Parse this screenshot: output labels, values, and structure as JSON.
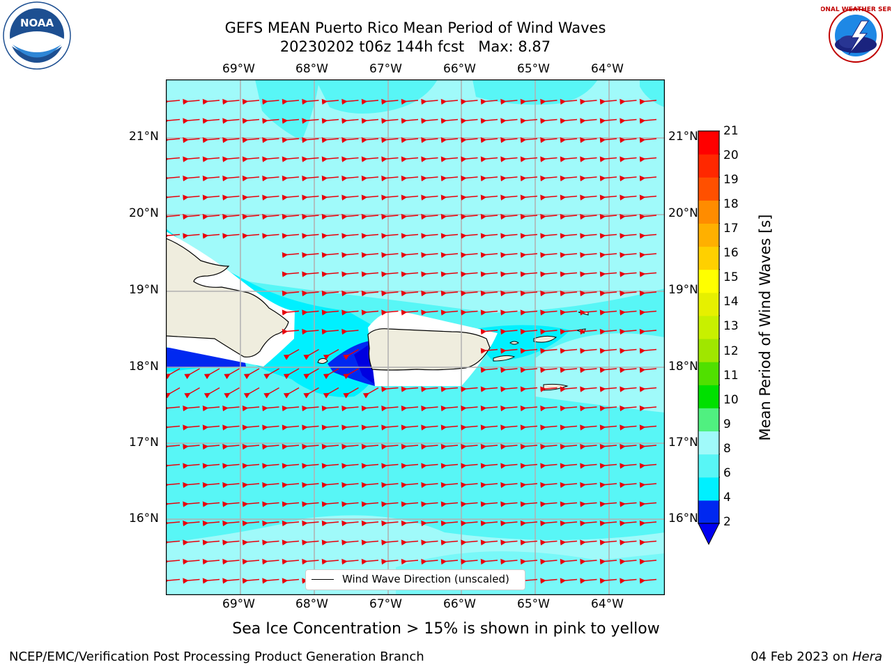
{
  "header": {
    "title_line1": "GEFS MEAN Puerto Rico Mean Period of Wind Waves",
    "title_line2": "20230202 t06z 144h fcst   Max: 8.87"
  },
  "logos": {
    "left": {
      "icon": "noaa-logo",
      "text": "NOAA"
    },
    "right": {
      "icon": "nws-logo",
      "ring_text": "NATIONAL WEATHER SERVICE"
    }
  },
  "map": {
    "lon_labels": [
      "69°W",
      "68°W",
      "67°W",
      "66°W",
      "65°W",
      "64°W"
    ],
    "lat_labels": [
      "21°N",
      "20°N",
      "19°N",
      "18°N",
      "17°N",
      "16°N"
    ],
    "legend_label": "Wind Wave Direction (unscaled)",
    "arrow_color": "#e8000b",
    "land_color": "#efedde",
    "grid_color": "#b0b0b0"
  },
  "colorbar": {
    "label": "Mean Period of Wind Waves [s]",
    "ticks": [
      "2",
      "4",
      "6",
      "8",
      "9",
      "10",
      "11",
      "12",
      "13",
      "14",
      "15",
      "16",
      "17",
      "18",
      "19",
      "20",
      "21"
    ],
    "colors": [
      "#0028f0",
      "#00f0ff",
      "#58f6f6",
      "#a0fafa",
      "#50f080",
      "#00e000",
      "#50e000",
      "#a0e600",
      "#c8f000",
      "#e6f000",
      "#ffff00",
      "#ffd000",
      "#ffb000",
      "#ff8c00",
      "#ff5000",
      "#ff2800",
      "#ff0000"
    ],
    "under_color": "#0000f0"
  },
  "note": "Sea Ice Concentration > 15% is shown in pink to yellow",
  "footer": {
    "left": "NCEP/EMC/Verification Post Processing Product Generation Branch",
    "right_date": "04 Feb 2023 on ",
    "right_host": "Hera"
  }
}
